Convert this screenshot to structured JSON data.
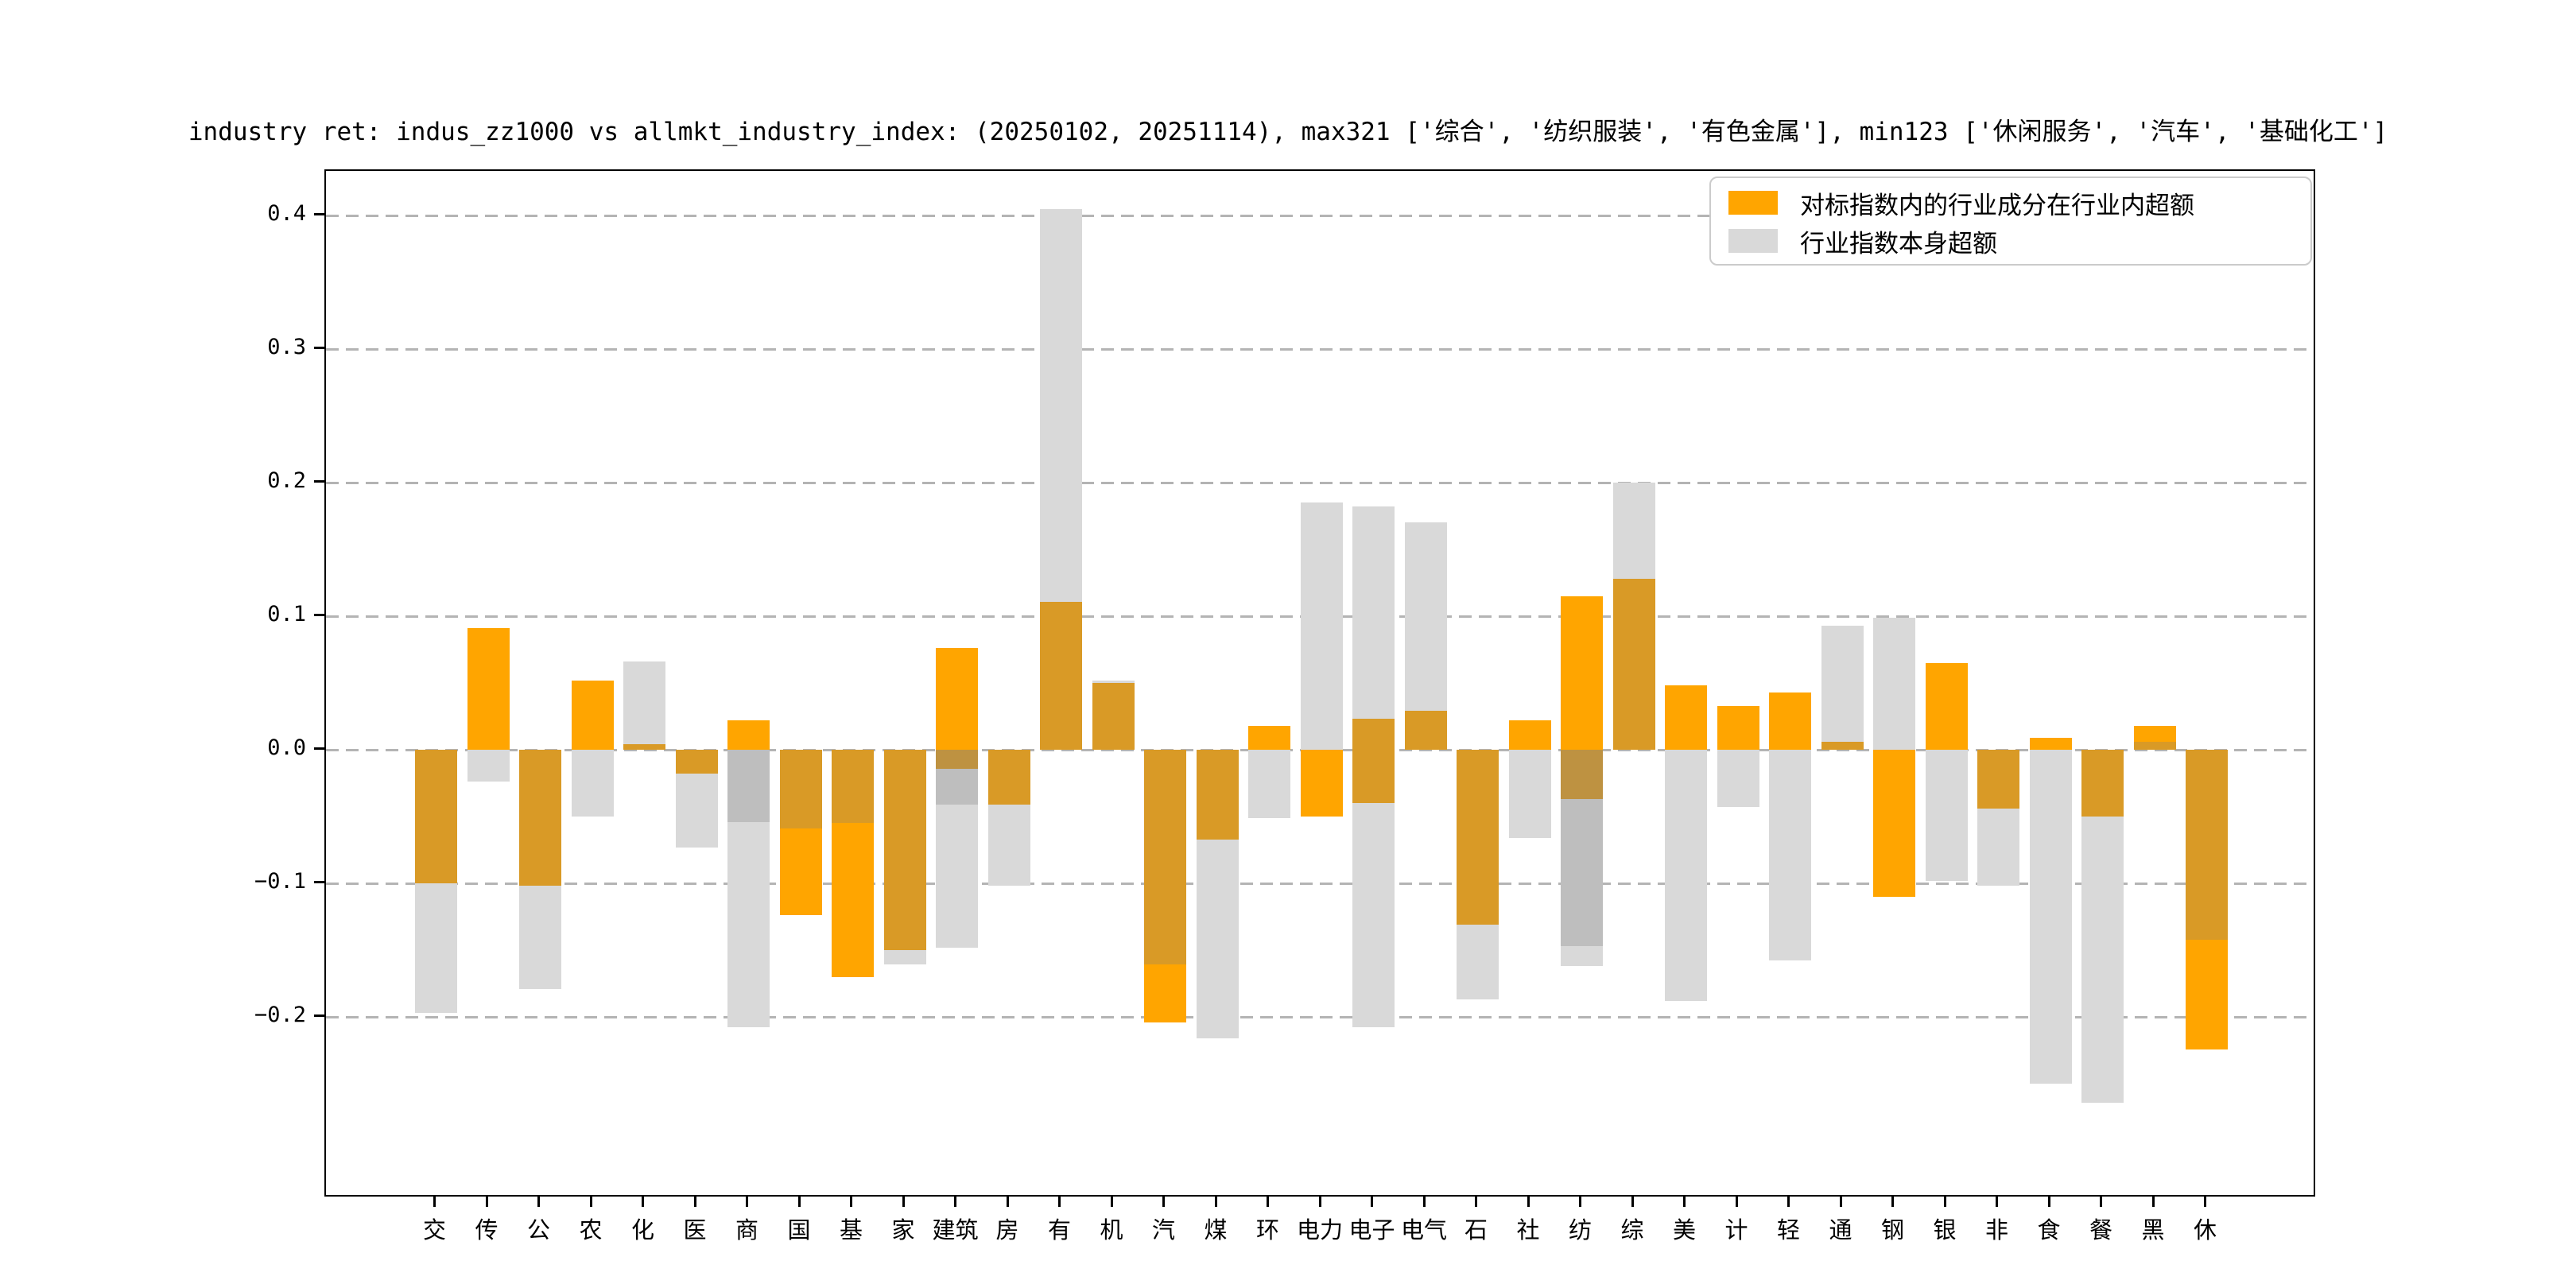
{
  "title": "industry ret: indus_zz1000 vs allmkt_industry_index: (20250102, 20251114), max321 ['综合', '纺织服装', '有色金属'], min123 ['休闲服务', '汽车', '基础化工']",
  "legend": {
    "items": [
      {
        "label": "对标指数内的行业成分在行业内超额",
        "color": "#FFA500"
      },
      {
        "label": "行业指数本身超额",
        "color": "#D9D9D9"
      }
    ]
  },
  "colors": {
    "o": "#FFA500",
    "a": "#D99A26",
    "a2": "#BE9241",
    "g": "#D9D9D9",
    "g2": "#BEBEBE",
    "grid": "#B4B4B4",
    "spine": "#000000",
    "legend_border": "#CBCBCB"
  },
  "chart_data": {
    "type": "bar",
    "title": "industry ret: indus_zz1000 vs allmkt_industry_index: (20250102, 20251114), max321 ['综合', '纺织服装', '有色金属'], min123 ['休闲服务', '汽车', '基础化工']",
    "xlabel": "",
    "ylabel": "",
    "ylim": [
      -0.335,
      0.432
    ],
    "yticks": [
      0.4,
      0.3,
      0.2,
      0.1,
      0.0,
      -0.1,
      -0.2
    ],
    "ytick_labels": [
      "0.4",
      "0.3",
      "0.2",
      "0.1",
      "0.0",
      "−0.1",
      "−0.2"
    ],
    "grid": true,
    "legend_position": "upper right",
    "categories": [
      "交",
      "传",
      "公",
      "农",
      "化",
      "医",
      "商",
      "国",
      "基",
      "家",
      "建筑",
      "房",
      "有",
      "机",
      "汽",
      "煤",
      "环",
      "电力",
      "电子",
      "电气",
      "石",
      "社",
      "纺",
      "综",
      "美",
      "计",
      "轻",
      "通",
      "钢",
      "银",
      "非",
      "食",
      "餐",
      "黑",
      "休"
    ],
    "series": [
      {
        "name": "对标指数内的行业成分在行业内超额",
        "color": "#FFA500",
        "values": [
          -0.1,
          0.091,
          -0.102,
          0.052,
          0.004,
          -0.018,
          0.022,
          -0.124,
          -0.17,
          -0.15,
          0.076,
          -0.041,
          0.111,
          0.05,
          -0.204,
          -0.067,
          0.018,
          -0.05,
          0.023,
          0.029,
          -0.131,
          0.022,
          0.115,
          0.128,
          0.048,
          0.033,
          0.043,
          0.006,
          -0.11,
          0.065,
          -0.044,
          0.009,
          -0.05,
          0.018,
          -0.224
        ]
      },
      {
        "name": "行业指数本身超额",
        "color": "#D9D9D9",
        "values": [
          -0.197,
          -0.024,
          -0.179,
          -0.05,
          0.066,
          -0.073,
          -0.208,
          -0.059,
          -0.055,
          -0.161,
          -0.148,
          -0.102,
          0.405,
          0.052,
          -0.161,
          -0.216,
          -0.051,
          0.185,
          -0.208,
          0.17,
          -0.187,
          -0.066,
          -0.147,
          0.2,
          -0.188,
          -0.043,
          -0.158,
          0.093,
          0.099,
          -0.098,
          -0.102,
          -0.25,
          -0.264,
          0.006,
          -0.142
        ]
      }
    ],
    "additional_bars": [
      {
        "category": "商",
        "series": "行业指数本身超额",
        "value": -0.054
      },
      {
        "category": "建筑",
        "series": "对标指数内的行业成分在行业内超额",
        "value": -0.014
      },
      {
        "category": "建筑",
        "series": "行业指数本身超额",
        "value": -0.041
      },
      {
        "category": "电子",
        "series": "对标指数内的行业成分在行业内超额",
        "value": -0.04
      },
      {
        "category": "电子",
        "series": "行业指数本身超额",
        "value": 0.182
      },
      {
        "category": "纺",
        "series": "对标指数内的行业成分在行业内超额",
        "value": -0.037
      },
      {
        "category": "纺",
        "series": "行业指数本身超额",
        "value": -0.162
      }
    ],
    "render_segments": [
      {
        "category": "交",
        "segments": [
          [
            0,
            -0.1,
            "a"
          ],
          [
            -0.1,
            -0.197,
            "g"
          ]
        ]
      },
      {
        "category": "传",
        "segments": [
          [
            0,
            0.091,
            "o"
          ],
          [
            0,
            -0.024,
            "g"
          ]
        ]
      },
      {
        "category": "公",
        "segments": [
          [
            0,
            -0.102,
            "a"
          ],
          [
            -0.102,
            -0.179,
            "g"
          ]
        ]
      },
      {
        "category": "农",
        "segments": [
          [
            0,
            0.052,
            "o"
          ],
          [
            0,
            -0.05,
            "g"
          ]
        ]
      },
      {
        "category": "化",
        "segments": [
          [
            0.066,
            0.004,
            "g"
          ],
          [
            0.004,
            0,
            "a"
          ]
        ]
      },
      {
        "category": "医",
        "segments": [
          [
            0,
            -0.018,
            "a"
          ],
          [
            -0.018,
            -0.073,
            "g"
          ]
        ]
      },
      {
        "category": "商",
        "segments": [
          [
            0,
            0.022,
            "o"
          ],
          [
            0,
            -0.054,
            "g2"
          ],
          [
            -0.054,
            -0.208,
            "g"
          ]
        ]
      },
      {
        "category": "国",
        "segments": [
          [
            0,
            -0.059,
            "a"
          ],
          [
            -0.059,
            -0.124,
            "o"
          ]
        ]
      },
      {
        "category": "基",
        "segments": [
          [
            0,
            -0.055,
            "a"
          ],
          [
            -0.055,
            -0.17,
            "o"
          ]
        ]
      },
      {
        "category": "家",
        "segments": [
          [
            0,
            -0.15,
            "a"
          ],
          [
            -0.15,
            -0.161,
            "g"
          ]
        ]
      },
      {
        "category": "建筑",
        "segments": [
          [
            0,
            0.076,
            "o"
          ],
          [
            0,
            -0.014,
            "a2"
          ],
          [
            -0.014,
            -0.041,
            "g2"
          ],
          [
            -0.041,
            -0.148,
            "g"
          ]
        ]
      },
      {
        "category": "房",
        "segments": [
          [
            0,
            -0.041,
            "a"
          ],
          [
            -0.041,
            -0.102,
            "g"
          ]
        ]
      },
      {
        "category": "有",
        "segments": [
          [
            0,
            0.111,
            "a"
          ],
          [
            0.111,
            0.405,
            "g"
          ]
        ]
      },
      {
        "category": "机",
        "segments": [
          [
            0,
            0.05,
            "a"
          ],
          [
            0.05,
            0.052,
            "g"
          ]
        ]
      },
      {
        "category": "汽",
        "segments": [
          [
            0,
            -0.161,
            "a"
          ],
          [
            -0.161,
            -0.204,
            "o"
          ]
        ]
      },
      {
        "category": "煤",
        "segments": [
          [
            0,
            -0.067,
            "a"
          ],
          [
            -0.067,
            -0.216,
            "g"
          ]
        ]
      },
      {
        "category": "环",
        "segments": [
          [
            0,
            0.018,
            "o"
          ],
          [
            0,
            -0.051,
            "g"
          ]
        ]
      },
      {
        "category": "电力",
        "segments": [
          [
            0.185,
            0,
            "g"
          ],
          [
            0,
            -0.05,
            "o"
          ]
        ]
      },
      {
        "category": "电子",
        "segments": [
          [
            0.182,
            0.023,
            "g"
          ],
          [
            0.023,
            -0.04,
            "a"
          ],
          [
            -0.04,
            -0.208,
            "g"
          ]
        ]
      },
      {
        "category": "电气",
        "segments": [
          [
            0.17,
            0.029,
            "g"
          ],
          [
            0.029,
            0,
            "a"
          ]
        ]
      },
      {
        "category": "石",
        "segments": [
          [
            0,
            -0.131,
            "a"
          ],
          [
            -0.131,
            -0.187,
            "g"
          ]
        ]
      },
      {
        "category": "社",
        "segments": [
          [
            0,
            0.022,
            "o"
          ],
          [
            0,
            -0.066,
            "g"
          ]
        ]
      },
      {
        "category": "纺",
        "segments": [
          [
            0,
            0.115,
            "o"
          ],
          [
            0,
            -0.037,
            "a2"
          ],
          [
            -0.037,
            -0.147,
            "g2"
          ],
          [
            -0.147,
            -0.162,
            "g"
          ]
        ]
      },
      {
        "category": "综",
        "segments": [
          [
            0,
            0.128,
            "a"
          ],
          [
            0.128,
            0.2,
            "g"
          ]
        ]
      },
      {
        "category": "美",
        "segments": [
          [
            0,
            0.048,
            "o"
          ],
          [
            0,
            -0.188,
            "g"
          ]
        ]
      },
      {
        "category": "计",
        "segments": [
          [
            0,
            0.033,
            "o"
          ],
          [
            0,
            -0.043,
            "g"
          ]
        ]
      },
      {
        "category": "轻",
        "segments": [
          [
            0,
            0.043,
            "o"
          ],
          [
            0,
            -0.158,
            "g"
          ]
        ]
      },
      {
        "category": "通",
        "segments": [
          [
            0.093,
            0.006,
            "g"
          ],
          [
            0.006,
            0,
            "a"
          ]
        ]
      },
      {
        "category": "钢",
        "segments": [
          [
            0.099,
            0,
            "g"
          ],
          [
            0,
            -0.11,
            "o"
          ]
        ]
      },
      {
        "category": "银",
        "segments": [
          [
            0,
            0.065,
            "o"
          ],
          [
            0,
            -0.098,
            "g"
          ]
        ]
      },
      {
        "category": "非",
        "segments": [
          [
            0,
            -0.044,
            "a"
          ],
          [
            -0.044,
            -0.102,
            "g"
          ]
        ]
      },
      {
        "category": "食",
        "segments": [
          [
            0,
            0.009,
            "o"
          ],
          [
            0,
            -0.25,
            "g"
          ]
        ]
      },
      {
        "category": "餐",
        "segments": [
          [
            0,
            -0.05,
            "a"
          ],
          [
            -0.05,
            -0.264,
            "g"
          ]
        ]
      },
      {
        "category": "黑",
        "segments": [
          [
            0,
            0.006,
            "a"
          ],
          [
            0.006,
            0.018,
            "o"
          ]
        ]
      },
      {
        "category": "休",
        "segments": [
          [
            0,
            -0.142,
            "a"
          ],
          [
            -0.142,
            -0.2245,
            "o"
          ]
        ]
      }
    ]
  }
}
